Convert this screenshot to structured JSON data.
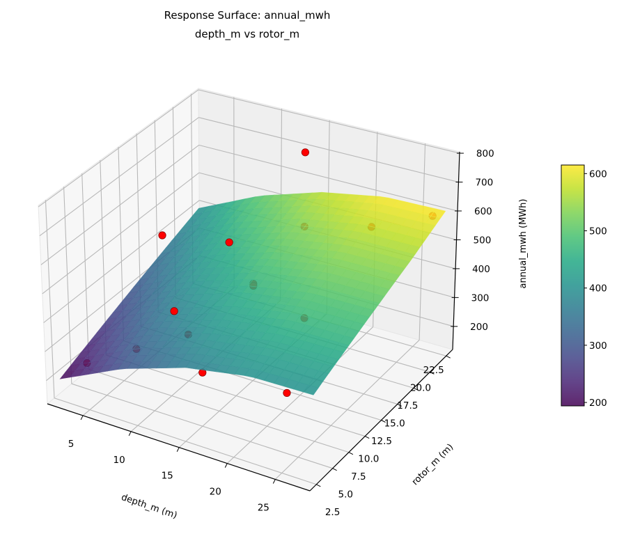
{
  "chart_data": {
    "type": "surface3d",
    "title": "Response Surface: annual_mwh",
    "subtitle": "depth_m vs rotor_m",
    "xlabel": "depth_m (m)",
    "ylabel": "rotor_m (m)",
    "zlabel": "annual_mwh (MWh)",
    "xlim": [
      1.3,
      28.6
    ],
    "ylim": [
      1.5,
      23.5
    ],
    "zlim": [
      120,
      805
    ],
    "xticks": [
      5,
      10,
      15,
      20,
      25
    ],
    "xtick_labels": [
      "5",
      "10",
      "15",
      "20",
      "25"
    ],
    "yticks": [
      2.5,
      5,
      7.5,
      10,
      12.5,
      15,
      17.5,
      20,
      22.5
    ],
    "ytick_labels": [
      "2.5",
      "5.0",
      "7.5",
      "10.0",
      "12.5",
      "15.0",
      "17.5",
      "20.0",
      "22.5"
    ],
    "zticks": [
      200,
      300,
      400,
      500,
      600,
      700,
      800
    ],
    "ztick_labels": [
      "200",
      "300",
      "400",
      "500",
      "600",
      "700",
      "800"
    ],
    "grid": true,
    "colormap": "viridis",
    "surface": {
      "x": [
        2,
        8.5,
        15,
        21.5,
        28
      ],
      "y": [
        2.5,
        7.5,
        12.5,
        17.5,
        22.5
      ],
      "z": [
        [
          194,
          297,
          366,
          401,
          402
        ],
        [
          245,
          348,
          417,
          452,
          453
        ],
        [
          296,
          399,
          468,
          503,
          504
        ],
        [
          347,
          450,
          519,
          554,
          555
        ],
        [
          398,
          501,
          570,
          610,
          615
        ]
      ]
    },
    "points": {
      "color": "#ff0000",
      "x": [
        3,
        3,
        10,
        10,
        6,
        10,
        15,
        15,
        15,
        15,
        15,
        22,
        27,
        22,
        25
      ],
      "y": [
        5,
        16,
        16,
        8,
        8,
        10,
        12.5,
        12.5,
        5,
        20,
        20,
        20,
        22,
        10,
        3
      ],
      "z": [
        210,
        440,
        480,
        400,
        230,
        280,
        452,
        445,
        300,
        500,
        760,
        560,
        600,
        450,
        370
      ]
    },
    "colorbar": {
      "min": 194,
      "max": 615,
      "ticks": [
        200,
        300,
        400,
        500,
        600
      ],
      "tick_labels": [
        "200",
        "300",
        "400",
        "500",
        "600"
      ]
    }
  }
}
